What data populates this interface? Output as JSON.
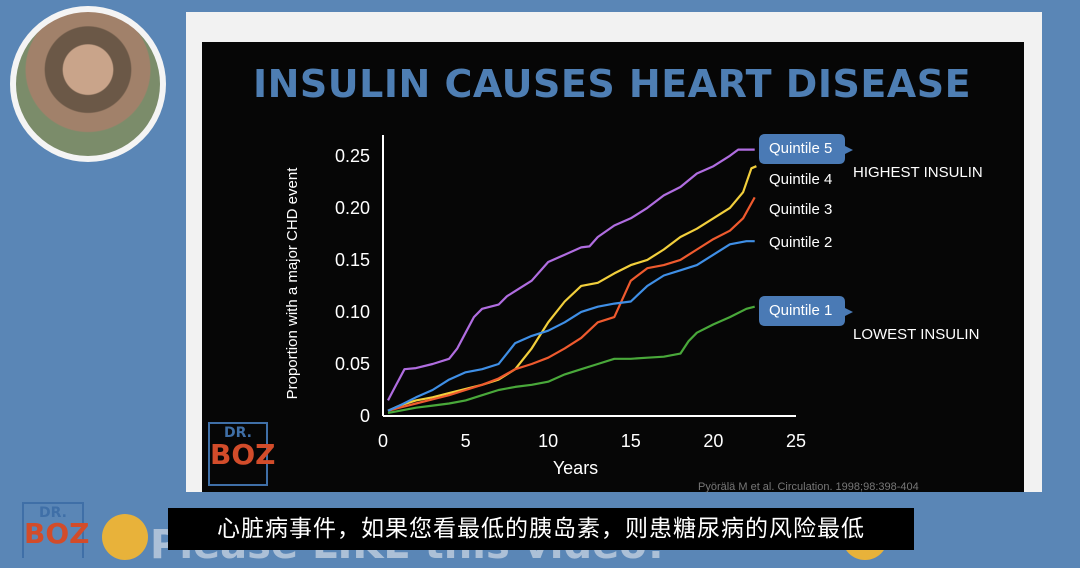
{
  "slide": {
    "title": "INSULIN CAUSES HEART DISEASE",
    "source": "Pyörälä M et al. Circulation. 1998;98:398-404"
  },
  "logo": {
    "top": "DR.",
    "bottom": "BOZ"
  },
  "subtitle": "心脏病事件，如果您看最低的胰岛素，则患糖尿病的风险最低",
  "bottom_banner": "Please LIKE this video!",
  "colors": {
    "slide_bg": "#060606",
    "title": "#4e7eb3",
    "q5": "#b06de0",
    "q4": "#f2cf3c",
    "q3": "#ef5a2e",
    "q2": "#3f8fe6",
    "q1": "#49a83a",
    "callout": "#4a7ab5"
  },
  "chart_data": {
    "type": "line",
    "title": "INSULIN CAUSES HEART DISEASE",
    "xlabel": "Years",
    "ylabel": "Proportion with a major CHD event",
    "xlim": [
      0,
      25
    ],
    "ylim": [
      0,
      0.27
    ],
    "x_ticks": [
      "0",
      "5",
      "10",
      "15",
      "20",
      "25"
    ],
    "y_ticks": [
      "0",
      "0.05",
      "0.10",
      "0.15",
      "0.20",
      "0.25"
    ],
    "series": [
      {
        "name": "Quintile 5",
        "color": "#b06de0",
        "points": [
          [
            0.3,
            0.015
          ],
          [
            0.8,
            0.03
          ],
          [
            1.3,
            0.045
          ],
          [
            2,
            0.046
          ],
          [
            3,
            0.05
          ],
          [
            4,
            0.055
          ],
          [
            4.5,
            0.065
          ],
          [
            5,
            0.08
          ],
          [
            5.5,
            0.095
          ],
          [
            6,
            0.103
          ],
          [
            7,
            0.107
          ],
          [
            7.5,
            0.115
          ],
          [
            8,
            0.12
          ],
          [
            9,
            0.13
          ],
          [
            10,
            0.148
          ],
          [
            11,
            0.155
          ],
          [
            12,
            0.162
          ],
          [
            12.5,
            0.163
          ],
          [
            13,
            0.172
          ],
          [
            14,
            0.183
          ],
          [
            15,
            0.19
          ],
          [
            16,
            0.2
          ],
          [
            17,
            0.212
          ],
          [
            18,
            0.22
          ],
          [
            19,
            0.233
          ],
          [
            20,
            0.24
          ],
          [
            21,
            0.25
          ],
          [
            21.5,
            0.256
          ],
          [
            22,
            0.256
          ],
          [
            22.5,
            0.256
          ]
        ]
      },
      {
        "name": "Quintile 4",
        "color": "#f2cf3c",
        "points": [
          [
            0.3,
            0.005
          ],
          [
            1,
            0.01
          ],
          [
            2,
            0.015
          ],
          [
            3,
            0.018
          ],
          [
            4,
            0.022
          ],
          [
            5,
            0.026
          ],
          [
            6,
            0.03
          ],
          [
            7,
            0.035
          ],
          [
            8,
            0.045
          ],
          [
            9,
            0.065
          ],
          [
            10,
            0.09
          ],
          [
            11,
            0.11
          ],
          [
            12,
            0.125
          ],
          [
            13,
            0.128
          ],
          [
            14,
            0.137
          ],
          [
            15,
            0.145
          ],
          [
            16,
            0.15
          ],
          [
            17,
            0.16
          ],
          [
            18,
            0.172
          ],
          [
            19,
            0.18
          ],
          [
            20,
            0.19
          ],
          [
            21,
            0.2
          ],
          [
            21.8,
            0.215
          ],
          [
            22.3,
            0.238
          ],
          [
            22.6,
            0.24
          ]
        ]
      },
      {
        "name": "Quintile 3",
        "color": "#ef5a2e",
        "points": [
          [
            0.3,
            0.005
          ],
          [
            1,
            0.008
          ],
          [
            2,
            0.012
          ],
          [
            3,
            0.016
          ],
          [
            4,
            0.02
          ],
          [
            5,
            0.025
          ],
          [
            6,
            0.03
          ],
          [
            7,
            0.036
          ],
          [
            8,
            0.045
          ],
          [
            9,
            0.05
          ],
          [
            10,
            0.056
          ],
          [
            11,
            0.065
          ],
          [
            12,
            0.075
          ],
          [
            13,
            0.09
          ],
          [
            14,
            0.095
          ],
          [
            15,
            0.13
          ],
          [
            16,
            0.142
          ],
          [
            17,
            0.145
          ],
          [
            18,
            0.15
          ],
          [
            19,
            0.16
          ],
          [
            20,
            0.17
          ],
          [
            21,
            0.178
          ],
          [
            21.8,
            0.19
          ],
          [
            22.5,
            0.21
          ]
        ]
      },
      {
        "name": "Quintile 2",
        "color": "#3f8fe6",
        "points": [
          [
            0.3,
            0.005
          ],
          [
            1,
            0.01
          ],
          [
            2,
            0.018
          ],
          [
            3,
            0.025
          ],
          [
            4,
            0.035
          ],
          [
            5,
            0.042
          ],
          [
            6,
            0.045
          ],
          [
            7,
            0.05
          ],
          [
            7.5,
            0.06
          ],
          [
            8,
            0.07
          ],
          [
            9,
            0.077
          ],
          [
            10,
            0.082
          ],
          [
            11,
            0.09
          ],
          [
            12,
            0.1
          ],
          [
            13,
            0.105
          ],
          [
            14,
            0.108
          ],
          [
            15,
            0.11
          ],
          [
            16,
            0.125
          ],
          [
            17,
            0.135
          ],
          [
            18,
            0.14
          ],
          [
            19,
            0.145
          ],
          [
            20,
            0.155
          ],
          [
            21,
            0.165
          ],
          [
            22,
            0.168
          ],
          [
            22.5,
            0.168
          ]
        ]
      },
      {
        "name": "Quintile 1",
        "color": "#49a83a",
        "points": [
          [
            0.3,
            0.003
          ],
          [
            1,
            0.005
          ],
          [
            2,
            0.008
          ],
          [
            3,
            0.01
          ],
          [
            4,
            0.012
          ],
          [
            5,
            0.015
          ],
          [
            6,
            0.02
          ],
          [
            7,
            0.025
          ],
          [
            8,
            0.028
          ],
          [
            9,
            0.03
          ],
          [
            10,
            0.033
          ],
          [
            11,
            0.04
          ],
          [
            12,
            0.045
          ],
          [
            13,
            0.05
          ],
          [
            14,
            0.055
          ],
          [
            15,
            0.055
          ],
          [
            16,
            0.056
          ],
          [
            17,
            0.057
          ],
          [
            18,
            0.06
          ],
          [
            18.5,
            0.072
          ],
          [
            19,
            0.08
          ],
          [
            20,
            0.088
          ],
          [
            21,
            0.095
          ],
          [
            22,
            0.103
          ],
          [
            22.5,
            0.105
          ]
        ]
      }
    ],
    "legend_labels": [
      {
        "series": "Quintile 5",
        "boxed": true,
        "note": "HIGHEST INSULIN"
      },
      {
        "series": "Quintile 4",
        "boxed": false,
        "note": ""
      },
      {
        "series": "Quintile 3",
        "boxed": false,
        "note": ""
      },
      {
        "series": "Quintile 2",
        "boxed": false,
        "note": ""
      },
      {
        "series": "Quintile 1",
        "boxed": true,
        "note": "LOWEST INSULIN"
      }
    ],
    "grid": false
  }
}
